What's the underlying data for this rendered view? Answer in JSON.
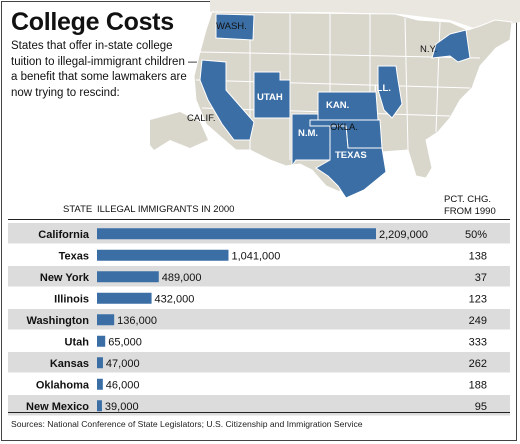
{
  "header": {
    "title": "College Costs",
    "subtitle": "States that offer in-state college tuition to illegal-immigrant children —a benefit that some lawmakers are now trying to rescind:"
  },
  "map": {
    "highlight_color": "#3a6ea5",
    "base_color": "#d9d6cc",
    "labels": {
      "wash": "WASH.",
      "calif": "CALIF.",
      "utah": "UTAH",
      "nm": "N.M.",
      "kan": "KAN.",
      "okla": "OKLA.",
      "texas": "TEXAS",
      "ill": "ILL.",
      "ny": "N.Y."
    }
  },
  "table_headers": {
    "state": "STATE",
    "immigrants": "ILLEGAL IMMIGRANTS IN 2000",
    "pct": "PCT. CHG.",
    "pct2": "FROM 1990"
  },
  "chart_data": {
    "type": "bar",
    "orientation": "horizontal",
    "categories": [
      "California",
      "Texas",
      "New York",
      "Illinois",
      "Washington",
      "Utah",
      "Kansas",
      "Oklahoma",
      "New Mexico"
    ],
    "values": [
      2209000,
      1041000,
      489000,
      432000,
      136000,
      65000,
      47000,
      46000,
      39000
    ],
    "value_labels": [
      "2,209,000",
      "1,041,000",
      "489,000",
      "432,000",
      "136,000",
      "65,000",
      "47,000",
      "46,000",
      "39,000"
    ],
    "pct_change": [
      "50%",
      "138",
      "37",
      "123",
      "249",
      "333",
      "262",
      "188",
      "95"
    ],
    "bar_color": "#3a6ea5",
    "stripe_color": "#dcdcdc",
    "xlim": [
      0,
      2209000
    ]
  },
  "source": "Sources: National Conference of State Legislators; U.S. Citizenship and Immigration Service"
}
